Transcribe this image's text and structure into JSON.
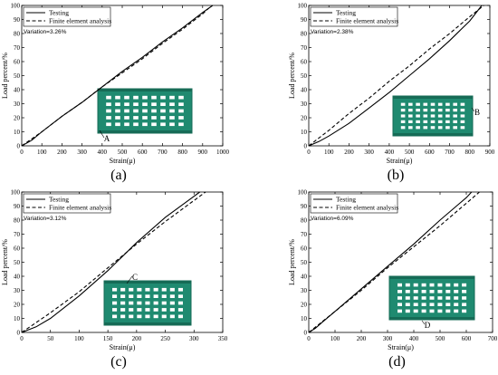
{
  "chart_data": [
    {
      "type": "line",
      "panel_label": "(a)",
      "xlabel": "Strain(μ)",
      "ylabel": "Load percent/%",
      "xlim": [
        0,
        1000
      ],
      "ylim": [
        0,
        100
      ],
      "xticks": [
        0,
        100,
        200,
        300,
        400,
        500,
        600,
        700,
        800,
        900,
        1000
      ],
      "yticks": [
        0,
        10,
        20,
        30,
        40,
        50,
        60,
        70,
        80,
        90,
        100
      ],
      "annotation": "Variation=3.26%",
      "marker_label": "A",
      "legend_position": "top-left",
      "series": [
        {
          "name": "Testing",
          "style": "solid",
          "x": [
            0,
            50,
            100,
            200,
            300,
            400,
            500,
            600,
            700,
            800,
            900,
            950
          ],
          "y": [
            0,
            4,
            10,
            21,
            31,
            42,
            53,
            63,
            74,
            84,
            95,
            100
          ]
        },
        {
          "name": "Finite element analysis",
          "style": "dashed",
          "x": [
            0,
            100,
            200,
            300,
            400,
            500,
            600,
            700,
            800,
            900,
            930
          ],
          "y": [
            0,
            10,
            21,
            31,
            42,
            52,
            62,
            73,
            83,
            94,
            98
          ]
        }
      ]
    },
    {
      "type": "line",
      "panel_label": "(b)",
      "xlabel": "Strain(μ)",
      "ylabel": "Load percent/%",
      "xlim": [
        0,
        900
      ],
      "ylim": [
        0,
        100
      ],
      "xticks": [
        0,
        100,
        200,
        300,
        400,
        500,
        600,
        700,
        800,
        900
      ],
      "yticks": [
        0,
        10,
        20,
        30,
        40,
        50,
        60,
        70,
        80,
        90,
        100
      ],
      "annotation": "Variation=2.38%",
      "marker_label": "B",
      "legend_position": "top-left",
      "series": [
        {
          "name": "Testing",
          "style": "solid",
          "x": [
            0,
            50,
            100,
            200,
            300,
            400,
            500,
            600,
            700,
            800,
            860
          ],
          "y": [
            0,
            3,
            7,
            16,
            27,
            38,
            50,
            62,
            75,
            89,
            100
          ]
        },
        {
          "name": "Finite element analysis",
          "style": "dashed",
          "x": [
            0,
            100,
            200,
            300,
            400,
            500,
            600,
            700,
            800,
            870
          ],
          "y": [
            0,
            11,
            23,
            34,
            46,
            57,
            69,
            80,
            92,
            100
          ]
        }
      ]
    },
    {
      "type": "line",
      "panel_label": "(c)",
      "xlabel": "Strain(μ)",
      "ylabel": "Load percent/%",
      "xlim": [
        0,
        350
      ],
      "ylim": [
        0,
        100
      ],
      "xticks": [
        0,
        50,
        100,
        150,
        200,
        250,
        300,
        350
      ],
      "yticks": [
        0,
        10,
        20,
        30,
        40,
        50,
        60,
        70,
        80,
        90,
        100
      ],
      "annotation": "Variation=3.12%",
      "marker_label": "C",
      "legend_position": "top-left",
      "series": [
        {
          "name": "Testing",
          "style": "solid",
          "x": [
            0,
            25,
            50,
            100,
            150,
            200,
            250,
            300,
            310
          ],
          "y": [
            0,
            4,
            10,
            26,
            44,
            64,
            82,
            97,
            100
          ]
        },
        {
          "name": "Finite element analysis",
          "style": "dashed",
          "x": [
            0,
            50,
            100,
            150,
            200,
            250,
            300,
            320
          ],
          "y": [
            0,
            14,
            29,
            46,
            63,
            79,
            94,
            100
          ]
        }
      ]
    },
    {
      "type": "line",
      "panel_label": "(d)",
      "xlabel": "Strain(μ)",
      "ylabel": "Load percent/%",
      "xlim": [
        0,
        700
      ],
      "ylim": [
        0,
        100
      ],
      "xticks": [
        0,
        100,
        200,
        300,
        400,
        500,
        600,
        700
      ],
      "yticks": [
        0,
        10,
        20,
        30,
        40,
        50,
        60,
        70,
        80,
        90,
        100
      ],
      "annotation": "Variation=6.09%",
      "marker_label": "D",
      "legend_position": "top-left",
      "series": [
        {
          "name": "Testing",
          "style": "solid",
          "x": [
            0,
            25,
            50,
            100,
            200,
            300,
            400,
            500,
            600,
            620
          ],
          "y": [
            0,
            3,
            7,
            15,
            31,
            47,
            63,
            80,
            96,
            100
          ]
        },
        {
          "name": "Finite element analysis",
          "style": "dashed",
          "x": [
            0,
            100,
            200,
            300,
            400,
            500,
            600,
            650
          ],
          "y": [
            0,
            15,
            30,
            46,
            61,
            76,
            92,
            100
          ]
        }
      ]
    }
  ],
  "colors": {
    "line": "#000000",
    "sample": "#1f8a70",
    "sample_dark": "#166b56",
    "hole": "#ffffff"
  }
}
